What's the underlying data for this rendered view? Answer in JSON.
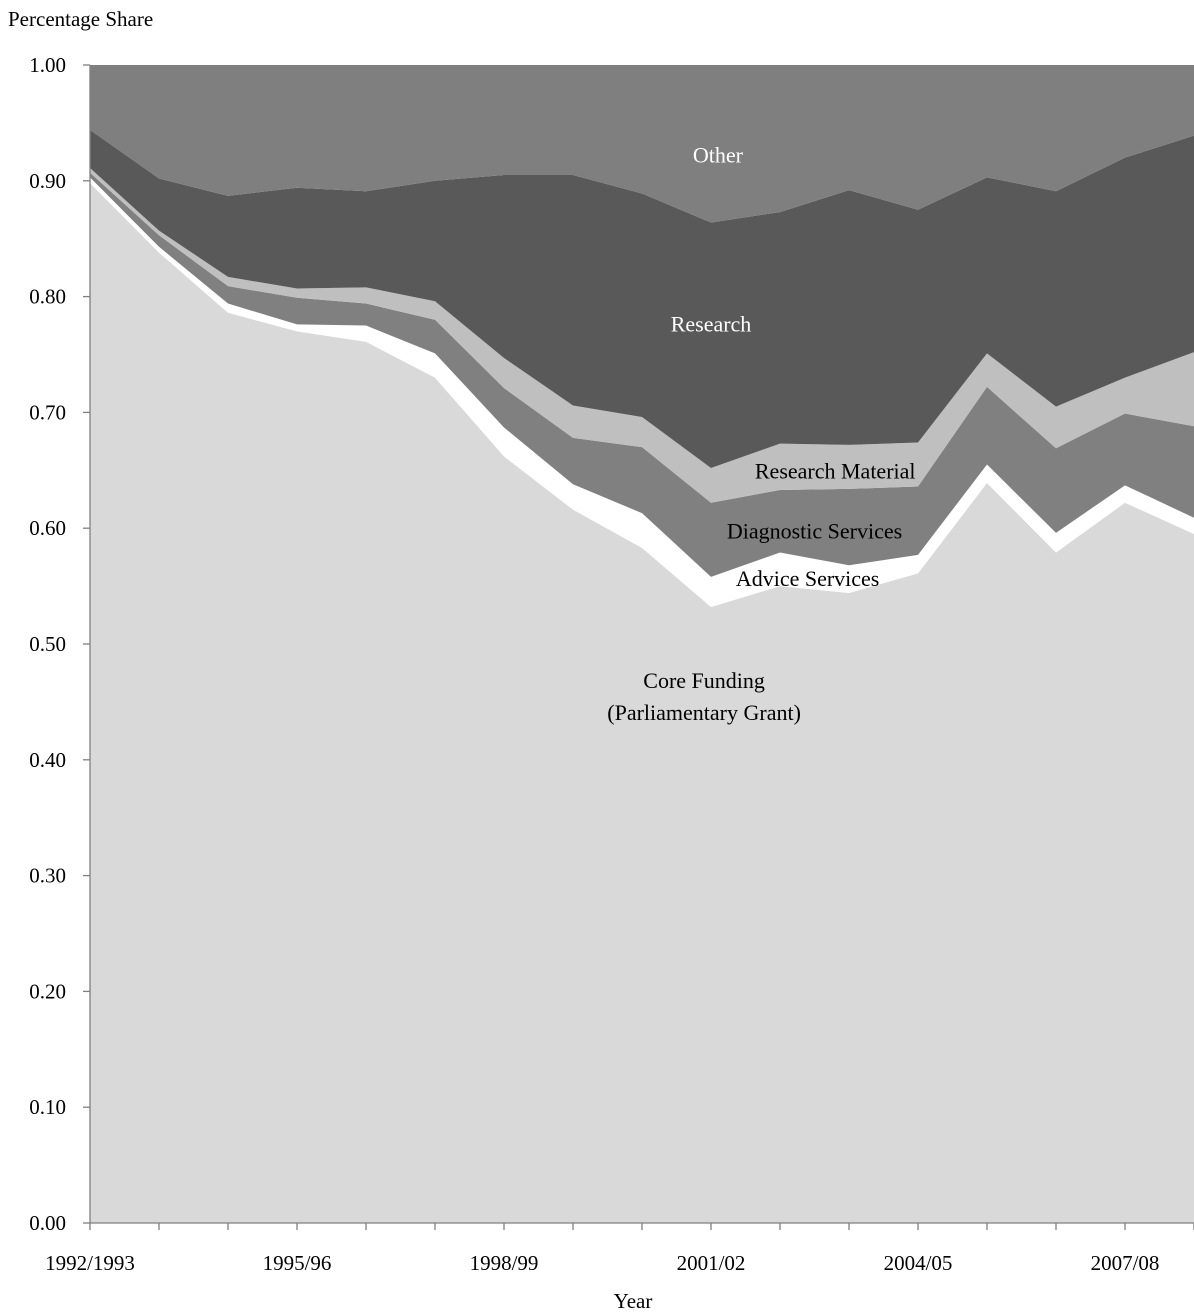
{
  "chart_data": {
    "type": "area",
    "stacked": true,
    "ylabel": "Percentage Share",
    "xlabel": "Year",
    "ylim": [
      0,
      1
    ],
    "yticks": [
      "0.00",
      "0.10",
      "0.20",
      "0.30",
      "0.40",
      "0.50",
      "0.60",
      "0.70",
      "0.80",
      "0.90",
      "1.00"
    ],
    "xtick_labels": [
      "1992/1993",
      "1995/96",
      "1998/99",
      "2001/02",
      "2004/05",
      "2007/08"
    ],
    "x": [
      "1992/1993",
      "1993/94",
      "1994/95",
      "1995/96",
      "1996/97",
      "1997/98",
      "1998/99",
      "1999/00",
      "2000/01",
      "2001/02",
      "2002/03",
      "2003/04",
      "2004/05",
      "2005/06",
      "2006/07",
      "2007/08",
      "2008/09"
    ],
    "grid": false,
    "legend": "none (inline labels)",
    "series": [
      {
        "name": "Core Funding\n(Parliamentary Grant)",
        "label_lines": [
          "Core Funding",
          "(Parliamentary Grant)"
        ],
        "color": "#d9d9d9",
        "values": [
          0.898,
          0.838,
          0.786,
          0.77,
          0.761,
          0.73,
          0.662,
          0.616,
          0.583,
          0.532,
          0.55,
          0.544,
          0.561,
          0.639,
          0.579,
          0.622,
          0.595
        ]
      },
      {
        "name": "Advice Services",
        "color": "#ffffff",
        "values": [
          0.005,
          0.005,
          0.008,
          0.006,
          0.014,
          0.021,
          0.025,
          0.022,
          0.03,
          0.026,
          0.029,
          0.024,
          0.016,
          0.016,
          0.017,
          0.015,
          0.014
        ]
      },
      {
        "name": "Diagnostic Services",
        "color": "#808080",
        "values": [
          0.004,
          0.01,
          0.015,
          0.023,
          0.019,
          0.029,
          0.034,
          0.04,
          0.057,
          0.064,
          0.054,
          0.066,
          0.059,
          0.067,
          0.073,
          0.062,
          0.079
        ]
      },
      {
        "name": "Research Material",
        "color": "#bfbfbf",
        "values": [
          0.004,
          0.004,
          0.008,
          0.008,
          0.014,
          0.016,
          0.026,
          0.028,
          0.026,
          0.03,
          0.04,
          0.038,
          0.038,
          0.029,
          0.036,
          0.031,
          0.064
        ]
      },
      {
        "name": "Research",
        "color": "#595959",
        "values": [
          0.033,
          0.045,
          0.07,
          0.087,
          0.083,
          0.104,
          0.158,
          0.199,
          0.193,
          0.212,
          0.2,
          0.22,
          0.201,
          0.152,
          0.186,
          0.19,
          0.187
        ]
      },
      {
        "name": "Other",
        "color": "#7f7f7f",
        "values": [
          0.056,
          0.098,
          0.113,
          0.106,
          0.109,
          0.1,
          0.095,
          0.095,
          0.111,
          0.136,
          0.127,
          0.108,
          0.125,
          0.097,
          0.109,
          0.08,
          0.061
        ]
      }
    ]
  }
}
